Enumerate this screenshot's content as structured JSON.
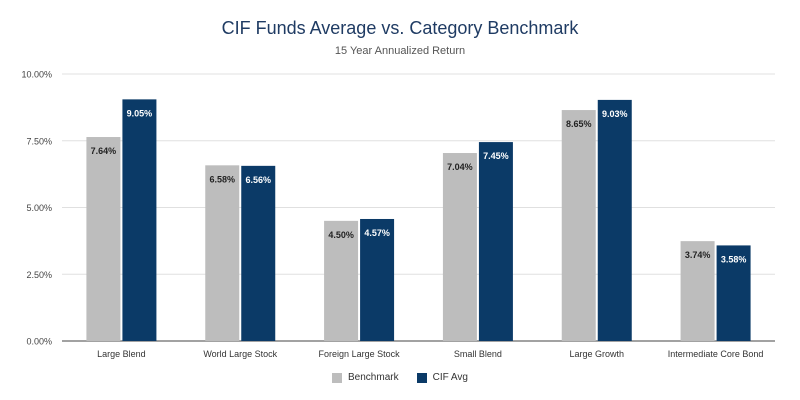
{
  "chart_data": {
    "type": "bar",
    "title": "CIF Funds Average vs. Category Benchmark",
    "subtitle": "15 Year Annualized Return",
    "categories": [
      "Large Blend",
      "World Large Stock",
      "Foreign Large Stock",
      "Small Blend",
      "Large Growth",
      "Intermediate Core Bond"
    ],
    "series": [
      {
        "name": "Benchmark",
        "color": "#bdbdbd",
        "values": [
          7.64,
          6.58,
          4.5,
          7.04,
          8.65,
          3.74
        ],
        "labels": [
          "7.64%",
          "6.58%",
          "4.50%",
          "7.04%",
          "8.65%",
          "3.74%"
        ]
      },
      {
        "name": "CIF Avg",
        "color": "#0b3a67",
        "values": [
          9.05,
          6.56,
          4.57,
          7.45,
          9.03,
          3.58
        ],
        "labels": [
          "9.05%",
          "6.56%",
          "4.57%",
          "7.45%",
          "9.03%",
          "3.58%"
        ]
      }
    ],
    "y_ticks": [
      0,
      2.5,
      5,
      7.5,
      10
    ],
    "y_tick_labels": [
      "0.00%",
      "2.50%",
      "5.00%",
      "7.50%",
      "10.00%"
    ],
    "ylim": [
      0,
      10
    ],
    "grid": true,
    "legend_position": "bottom"
  }
}
